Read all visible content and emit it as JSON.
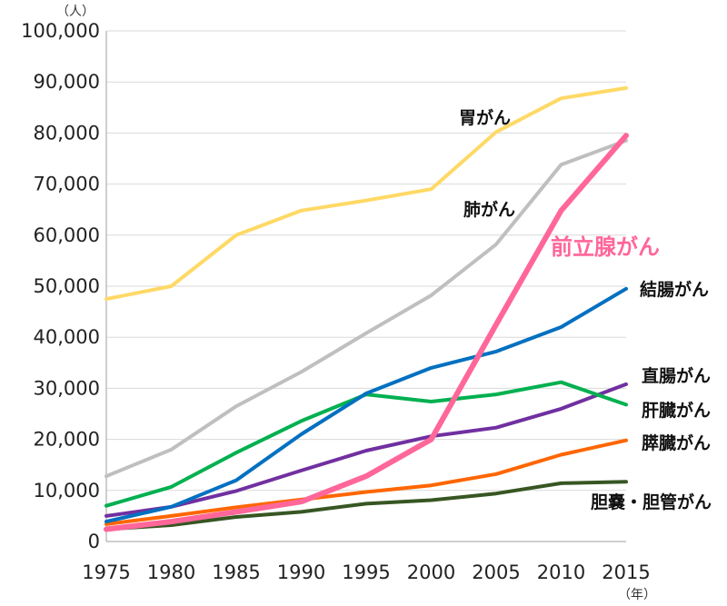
{
  "chart_data": {
    "type": "line",
    "ylabel": "（人）",
    "xlabel": "（年）",
    "ylim": [
      0,
      100000
    ],
    "y_ticks": [
      "0",
      "10,000",
      "20,000",
      "30,000",
      "40,000",
      "50,000",
      "60,000",
      "70,000",
      "80,000",
      "90,000",
      "100,000"
    ],
    "x": [
      "1975",
      "1980",
      "1985",
      "1990",
      "1995",
      "2000",
      "2005",
      "2010",
      "2015"
    ],
    "grid": "horizontal",
    "series": [
      {
        "name": "胃がん",
        "color": "#FFD966",
        "values": [
          47500,
          50000,
          60000,
          64800,
          66800,
          69000,
          80200,
          86800,
          88800
        ]
      },
      {
        "name": "肺がん",
        "color": "#BFBFBF",
        "values": [
          12800,
          18000,
          26500,
          33200,
          40800,
          48200,
          58200,
          73800,
          78500
        ]
      },
      {
        "name": "前立腺がん",
        "color": "#FF6699",
        "values": [
          2400,
          3900,
          5800,
          7800,
          12800,
          20000,
          42500,
          64800,
          79500
        ]
      },
      {
        "name": "結腸がん",
        "color": "#0070C0",
        "values": [
          3900,
          6800,
          12000,
          21000,
          29000,
          34000,
          37200,
          42000,
          49500
        ]
      },
      {
        "name": "直腸がん",
        "color": "#7030A0",
        "values": [
          5000,
          6800,
          9900,
          13900,
          17800,
          20600,
          22300,
          26000,
          30800
        ]
      },
      {
        "name": "肝臓がん",
        "color": "#00B050",
        "values": [
          7000,
          10700,
          17400,
          23600,
          28800,
          27400,
          28800,
          31200,
          26800
        ]
      },
      {
        "name": "膵臓がん",
        "color": "#FF6600",
        "values": [
          3400,
          5000,
          6700,
          8200,
          9700,
          11000,
          13200,
          17000,
          19800
        ]
      },
      {
        "name": "胆嚢・胆管がん",
        "color": "#375623",
        "values": [
          2400,
          3200,
          4800,
          5800,
          7400,
          8100,
          9400,
          11400,
          11700
        ]
      }
    ]
  }
}
